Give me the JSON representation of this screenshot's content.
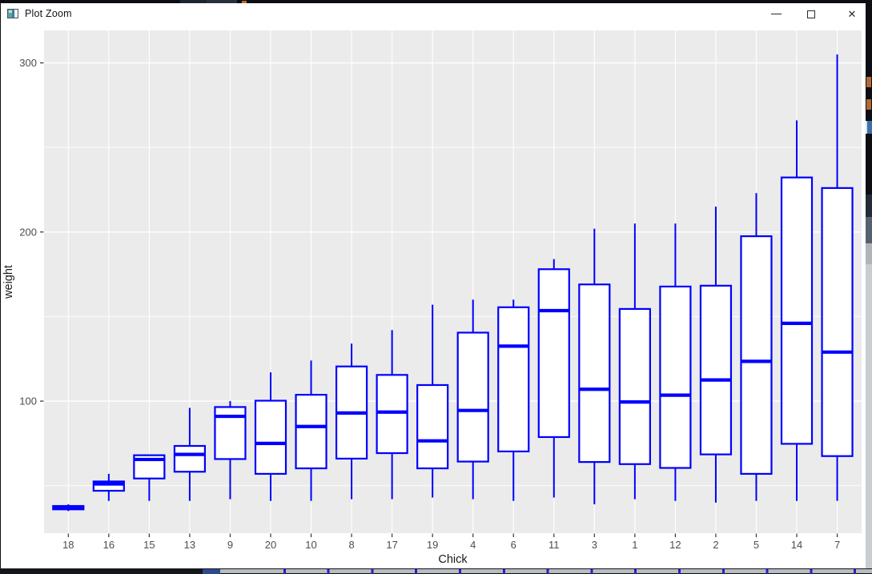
{
  "window": {
    "title": "Plot Zoom",
    "controls": {
      "minimize": "minimize",
      "maximize": "maximize",
      "close": "close"
    }
  },
  "chart_data": {
    "type": "boxplot",
    "title": "",
    "xlabel": "Chick",
    "ylabel": "weight",
    "categories": [
      "18",
      "16",
      "15",
      "13",
      "9",
      "20",
      "10",
      "8",
      "17",
      "19",
      "4",
      "6",
      "11",
      "3",
      "1",
      "12",
      "2",
      "5",
      "14",
      "7"
    ],
    "boxes": [
      {
        "chick": "18",
        "min": 35,
        "q1": 36,
        "median": 37,
        "q3": 38,
        "max": 39
      },
      {
        "chick": "16",
        "min": 41,
        "q1": 47,
        "median": 51,
        "q3": 52.5,
        "max": 57
      },
      {
        "chick": "15",
        "min": 41,
        "q1": 54.25,
        "median": 65.5,
        "q3": 68,
        "max": 68
      },
      {
        "chick": "13",
        "min": 41,
        "q1": 58.25,
        "median": 68.5,
        "q3": 73.5,
        "max": 96
      },
      {
        "chick": "9",
        "min": 42,
        "q1": 65.75,
        "median": 91,
        "q3": 96.5,
        "max": 100
      },
      {
        "chick": "20",
        "min": 41,
        "q1": 57,
        "median": 75,
        "q3": 100.25,
        "max": 117
      },
      {
        "chick": "10",
        "min": 41,
        "q1": 60.25,
        "median": 85,
        "q3": 103.75,
        "max": 124
      },
      {
        "chick": "8",
        "min": 42,
        "q1": 66,
        "median": 93,
        "q3": 120.5,
        "max": 134
      },
      {
        "chick": "17",
        "min": 42,
        "q1": 69.25,
        "median": 93.5,
        "q3": 115.5,
        "max": 142
      },
      {
        "chick": "19",
        "min": 43,
        "q1": 60.25,
        "median": 76.5,
        "q3": 109.5,
        "max": 157
      },
      {
        "chick": "4",
        "min": 42,
        "q1": 64.25,
        "median": 94.5,
        "q3": 140.5,
        "max": 160
      },
      {
        "chick": "6",
        "min": 41,
        "q1": 70.25,
        "median": 132.5,
        "q3": 155.5,
        "max": 160
      },
      {
        "chick": "11",
        "min": 43,
        "q1": 78.75,
        "median": 153.5,
        "q3": 178,
        "max": 184
      },
      {
        "chick": "3",
        "min": 39,
        "q1": 64,
        "median": 107,
        "q3": 169,
        "max": 202
      },
      {
        "chick": "1",
        "min": 42,
        "q1": 62.75,
        "median": 99.5,
        "q3": 154.5,
        "max": 205
      },
      {
        "chick": "12",
        "min": 41,
        "q1": 60.5,
        "median": 103.5,
        "q3": 167.75,
        "max": 205
      },
      {
        "chick": "2",
        "min": 40,
        "q1": 68.5,
        "median": 112.5,
        "q3": 168.25,
        "max": 215
      },
      {
        "chick": "5",
        "min": 41,
        "q1": 57,
        "median": 123.5,
        "q3": 197.5,
        "max": 223
      },
      {
        "chick": "14",
        "min": 41,
        "q1": 74.75,
        "median": 146,
        "q3": 232.25,
        "max": 266
      },
      {
        "chick": "7",
        "min": 41,
        "q1": 67.5,
        "median": 129,
        "q3": 226,
        "max": 305
      }
    ],
    "yticks": [
      100,
      200,
      300
    ],
    "yticks_minor": [
      50,
      150,
      250
    ],
    "ylim": [
      21.5,
      318.5
    ],
    "grid": "on",
    "legend": "none",
    "colors": {
      "box_stroke": "#0000FF",
      "box_fill": "#FFFFFF",
      "panel_bg": "#EBEBEB",
      "grid_line": "#FFFFFF",
      "tick_mark": "#333333",
      "tick_label": "#4D4D4D",
      "axis_title": "#1A1A1A"
    }
  }
}
